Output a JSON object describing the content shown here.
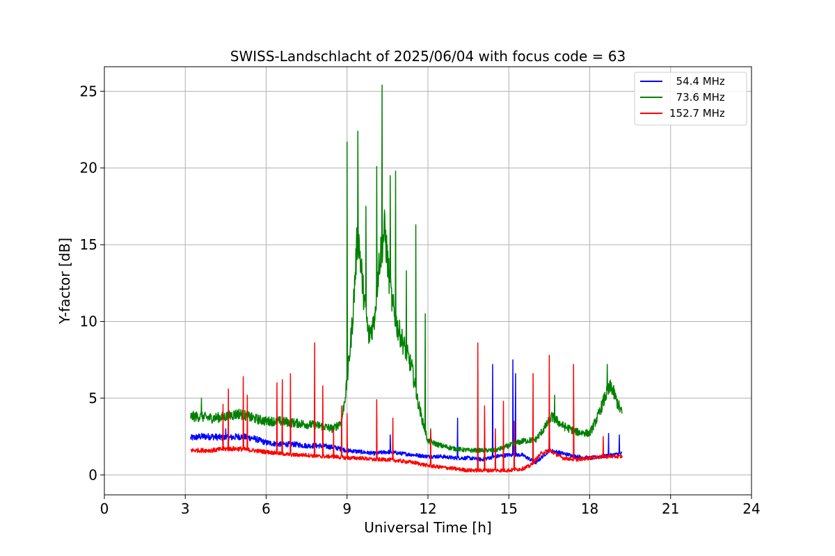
{
  "chart_data": {
    "type": "line",
    "title": "SWISS-Landschlacht of 2025/06/04 with focus code = 63",
    "xlabel": "Universal Time [h]",
    "ylabel": "Y-factor [dB]",
    "xlim": [
      0,
      24
    ],
    "ylim": [
      -1.3,
      26.6
    ],
    "xticks": [
      0,
      3,
      6,
      9,
      12,
      15,
      18,
      21,
      24
    ],
    "yticks": [
      0,
      5,
      10,
      15,
      20,
      25
    ],
    "xtick_labels": [
      "0",
      "3",
      "6",
      "9",
      "12",
      "15",
      "18",
      "21",
      "24"
    ],
    "ytick_labels": [
      "0",
      "5",
      "10",
      "15",
      "20",
      "25"
    ],
    "grid": true,
    "legend_position": "top-right",
    "series": [
      {
        "name": "54.4 MHz",
        "legend_label": "  54.4 MHz",
        "color": "#0000ff",
        "x": [
          3.2,
          3.6,
          4.0,
          4.5,
          5.0,
          5.5,
          6.0,
          6.5,
          7.0,
          7.5,
          8.0,
          8.5,
          9.0,
          9.5,
          10.0,
          10.5,
          11.0,
          11.5,
          12.0,
          12.5,
          13.0,
          13.5,
          14.0,
          14.5,
          15.0,
          15.5,
          16.0,
          16.5,
          17.0,
          17.5,
          18.0,
          18.5,
          19.2
        ],
        "y": [
          2.4,
          2.5,
          2.5,
          2.4,
          2.5,
          2.4,
          2.1,
          2.0,
          2.0,
          1.9,
          1.9,
          1.8,
          1.6,
          1.5,
          1.4,
          1.5,
          1.4,
          1.3,
          1.2,
          1.2,
          1.1,
          1.1,
          1.0,
          1.2,
          1.3,
          1.3,
          0.8,
          1.6,
          1.4,
          1.2,
          1.1,
          1.2,
          1.4
        ],
        "spikes": [
          [
            4.5,
            3.0
          ],
          [
            6.6,
            2.8
          ],
          [
            10.6,
            2.6
          ],
          [
            13.1,
            3.7
          ],
          [
            14.1,
            3.6
          ],
          [
            14.4,
            7.2
          ],
          [
            15.15,
            7.5
          ],
          [
            15.25,
            6.6
          ],
          [
            16.5,
            4.9
          ],
          [
            18.7,
            2.7
          ],
          [
            19.1,
            2.6
          ]
        ]
      },
      {
        "name": "73.6 MHz",
        "legend_label": "  73.6 MHz",
        "color": "#008000",
        "x": [
          3.2,
          3.5,
          4.0,
          4.5,
          5.0,
          5.5,
          6.0,
          6.5,
          7.0,
          7.5,
          8.0,
          8.5,
          8.8,
          9.0,
          9.2,
          9.4,
          9.6,
          9.8,
          10.0,
          10.2,
          10.4,
          10.6,
          10.8,
          11.0,
          11.2,
          11.4,
          11.6,
          11.8,
          12.0,
          12.5,
          13.0,
          13.5,
          14.0,
          14.5,
          15.0,
          15.5,
          16.0,
          16.3,
          16.6,
          17.0,
          17.5,
          18.0,
          18.3,
          18.6,
          18.8,
          19.0,
          19.2
        ],
        "y": [
          3.8,
          3.8,
          3.7,
          3.8,
          4.0,
          3.7,
          3.5,
          3.5,
          3.4,
          3.3,
          3.2,
          3.0,
          3.5,
          6.0,
          10.0,
          16.0,
          12.0,
          9.0,
          10.0,
          14.0,
          16.0,
          12.0,
          10.0,
          9.0,
          8.0,
          7.0,
          5.0,
          3.5,
          2.2,
          1.9,
          1.7,
          1.6,
          1.6,
          1.6,
          1.9,
          2.2,
          2.3,
          3.0,
          3.8,
          3.2,
          2.8,
          2.7,
          3.8,
          5.2,
          5.8,
          4.8,
          4.0
        ],
        "spikes": [
          [
            3.6,
            5.0
          ],
          [
            9.0,
            21.7
          ],
          [
            9.4,
            22.4
          ],
          [
            9.7,
            17.5
          ],
          [
            10.1,
            20.1
          ],
          [
            10.3,
            25.4
          ],
          [
            10.6,
            19.5
          ],
          [
            10.8,
            19.8
          ],
          [
            11.2,
            13.3
          ],
          [
            11.55,
            16.3
          ],
          [
            11.9,
            10.5
          ],
          [
            12.1,
            3.0
          ],
          [
            16.7,
            5.2
          ],
          [
            18.65,
            7.2
          ]
        ]
      },
      {
        "name": "152.7 MHz",
        "legend_label": "152.7 MHz",
        "color": "#ff0000",
        "x": [
          3.2,
          3.5,
          4.0,
          4.5,
          5.0,
          5.5,
          6.0,
          6.5,
          7.0,
          7.5,
          8.0,
          8.5,
          9.0,
          9.5,
          10.0,
          10.5,
          11.0,
          11.5,
          12.0,
          12.5,
          13.0,
          13.5,
          14.0,
          14.5,
          15.0,
          15.5,
          15.8,
          16.0,
          16.2,
          16.5,
          17.0,
          17.5,
          18.0,
          18.5,
          19.2
        ],
        "y": [
          1.6,
          1.6,
          1.6,
          1.7,
          1.7,
          1.6,
          1.5,
          1.4,
          1.3,
          1.3,
          1.2,
          1.2,
          1.1,
          1.1,
          1.0,
          1.0,
          0.9,
          0.8,
          0.6,
          0.5,
          0.4,
          0.3,
          0.3,
          0.3,
          0.3,
          0.4,
          0.6,
          1.0,
          1.4,
          1.6,
          1.1,
          1.0,
          1.1,
          1.2,
          1.2
        ],
        "spikes": [
          [
            4.4,
            4.6
          ],
          [
            4.6,
            5.6
          ],
          [
            5.15,
            6.4
          ],
          [
            5.3,
            5.2
          ],
          [
            6.4,
            6.0
          ],
          [
            6.6,
            6.2
          ],
          [
            6.9,
            6.6
          ],
          [
            7.8,
            8.6
          ],
          [
            8.1,
            5.8
          ],
          [
            8.5,
            3.0
          ],
          [
            8.8,
            4.5
          ],
          [
            9.0,
            4.0
          ],
          [
            10.1,
            4.9
          ],
          [
            10.7,
            3.7
          ],
          [
            12.1,
            2.9
          ],
          [
            13.85,
            8.6
          ],
          [
            14.1,
            4.5
          ],
          [
            14.5,
            3.0
          ],
          [
            14.8,
            4.8
          ],
          [
            15.2,
            3.5
          ],
          [
            15.9,
            6.6
          ],
          [
            16.5,
            7.8
          ],
          [
            17.4,
            7.2
          ],
          [
            18.5,
            2.5
          ]
        ]
      }
    ]
  }
}
